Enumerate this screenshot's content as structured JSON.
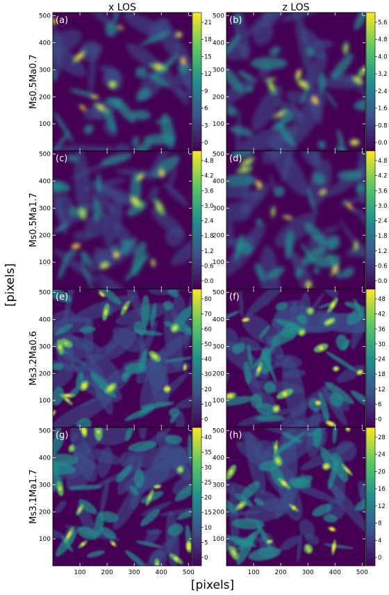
{
  "figure": {
    "column_titles": [
      "x LOS",
      "z LOS"
    ],
    "xlabel": "[pixels]",
    "ylabel": "[pixels]",
    "x_ticks": [
      "100",
      "200",
      "300",
      "400",
      "500"
    ],
    "y_ticks": [
      "500",
      "400",
      "300",
      "200",
      "100"
    ],
    "row_labels": [
      "Ms0.5Ma0.7",
      "Ms0.5Ma1.7",
      "Ms3.2Ma0.6",
      "Ms3.1Ma1.7"
    ],
    "colormap": [
      "#440154",
      "#3b528b",
      "#21908d",
      "#5dc963",
      "#fde725"
    ],
    "panels": [
      {
        "label": "(a)",
        "cbar_ticks": [
          "21",
          "18",
          "15",
          "12",
          "9",
          "6",
          "3",
          "0"
        ]
      },
      {
        "label": "(b)",
        "cbar_ticks": [
          "5.6",
          "4.8",
          "4.0",
          "3.2",
          "2.4",
          "1.6",
          "0.8",
          "0.0"
        ]
      },
      {
        "label": "(c)",
        "cbar_ticks": [
          "4.8",
          "4.2",
          "3.6",
          "3.0",
          "2.4",
          "1.8",
          "1.2",
          "0.6",
          "0.0"
        ]
      },
      {
        "label": "(d)",
        "cbar_ticks": [
          "4.8",
          "4.2",
          "3.6",
          "3.0",
          "2.4",
          "1.8",
          "1.2",
          "0.6",
          "0.0"
        ]
      },
      {
        "label": "(e)",
        "cbar_ticks": [
          "80",
          "70",
          "60",
          "50",
          "40",
          "30",
          "20",
          "10",
          "0"
        ]
      },
      {
        "label": "(f)",
        "cbar_ticks": [
          "48",
          "42",
          "36",
          "30",
          "24",
          "18",
          "12",
          "6",
          "0"
        ]
      },
      {
        "label": "(g)",
        "cbar_ticks": [
          "40",
          "35",
          "30",
          "25",
          "20",
          "15",
          "10",
          "5",
          "0"
        ]
      },
      {
        "label": "(h)",
        "cbar_ticks": [
          "28",
          "24",
          "20",
          "16",
          "12",
          "8",
          "4",
          "0"
        ]
      }
    ]
  }
}
